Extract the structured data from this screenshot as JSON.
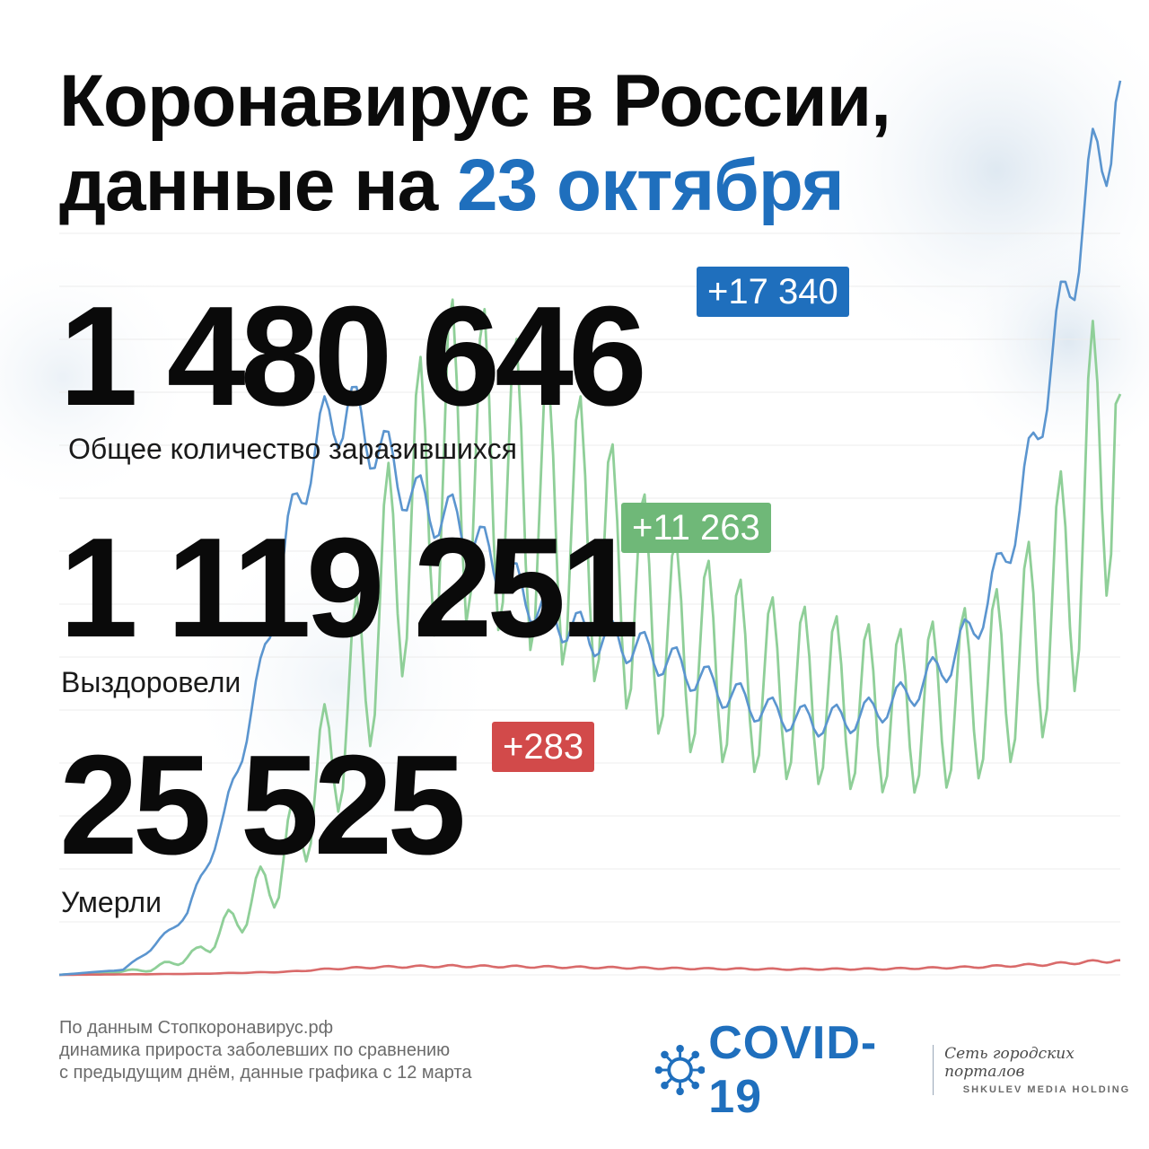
{
  "title": {
    "line1": "Коронавирус в России,",
    "line2_prefix": "данные на ",
    "date": "23 октября"
  },
  "stats": {
    "infected": {
      "value": "1 480 646",
      "delta": "+17 340",
      "label": "Общее количество заразившихся"
    },
    "recovered": {
      "value": "1 119 251",
      "delta": "+11 263",
      "label": "Выздоровели"
    },
    "deaths": {
      "value": "25 525",
      "delta": "+283",
      "label": "Умерли"
    }
  },
  "footer": {
    "line1": "По данным Стопкоронавирус.рф",
    "line2": "динамика прироста заболевших по сравнению",
    "line3": "с предыдущим днём, данные графика с 12 марта"
  },
  "logo": {
    "name": "COVID-19",
    "tagline": "Сеть городских порталов",
    "holding": "SHKULEV MEDIA HOLDING"
  },
  "colors": {
    "accent_blue": "#1f6fbd",
    "infected_line": "#5b95cf",
    "recovered_line": "#8fcf98",
    "deaths_line": "#d96a6a",
    "badge_blue": "#1f6fbd",
    "badge_green": "#6fb878",
    "badge_red": "#d24a4a"
  },
  "chart_data": {
    "type": "line",
    "title": "",
    "xlabel": "",
    "ylabel": "",
    "grid": true,
    "legend": "none",
    "ylim": [
      0,
      18000
    ],
    "x_start": "12 марта",
    "x_end": "23 октября",
    "series": [
      {
        "key": "infected",
        "anchors": [
          [
            0,
            0
          ],
          [
            14,
            100
          ],
          [
            20,
            500
          ],
          [
            28,
            1200
          ],
          [
            36,
            3000
          ],
          [
            44,
            5800
          ],
          [
            50,
            8500
          ],
          [
            55,
            10000
          ],
          [
            58,
            10600
          ],
          [
            63,
            11000
          ],
          [
            70,
            10200
          ],
          [
            78,
            9200
          ],
          [
            88,
            8700
          ],
          [
            97,
            7800
          ],
          [
            105,
            7100
          ],
          [
            115,
            6600
          ],
          [
            125,
            6400
          ],
          [
            135,
            6000
          ],
          [
            145,
            5500
          ],
          [
            155,
            5100
          ],
          [
            165,
            4900
          ],
          [
            175,
            5000
          ],
          [
            185,
            5400
          ],
          [
            195,
            6100
          ],
          [
            203,
            7200
          ],
          [
            210,
            9000
          ],
          [
            216,
            11500
          ],
          [
            221,
            13500
          ],
          [
            226,
            15500
          ],
          [
            230,
            16500
          ],
          [
            232,
            17340
          ]
        ]
      },
      {
        "key": "recovered",
        "anchors": [
          [
            0,
            0
          ],
          [
            20,
            100
          ],
          [
            30,
            400
          ],
          [
            40,
            1200
          ],
          [
            48,
            2000
          ],
          [
            55,
            3400
          ],
          [
            62,
            4800
          ],
          [
            70,
            7000
          ],
          [
            76,
            8700
          ],
          [
            85,
            10000
          ],
          [
            95,
            9800
          ],
          [
            105,
            9000
          ],
          [
            115,
            8500
          ],
          [
            125,
            7400
          ],
          [
            135,
            6400
          ],
          [
            145,
            6000
          ],
          [
            155,
            5600
          ],
          [
            165,
            5400
          ],
          [
            175,
            5200
          ],
          [
            185,
            5100
          ],
          [
            195,
            5300
          ],
          [
            205,
            5700
          ],
          [
            215,
            6700
          ],
          [
            222,
            8000
          ],
          [
            228,
            10500
          ],
          [
            232,
            11263
          ]
        ]
      },
      {
        "key": "deaths",
        "anchors": [
          [
            0,
            0
          ],
          [
            30,
            20
          ],
          [
            50,
            60
          ],
          [
            60,
            120
          ],
          [
            70,
            150
          ],
          [
            85,
            170
          ],
          [
            100,
            160
          ],
          [
            120,
            140
          ],
          [
            140,
            120
          ],
          [
            160,
            110
          ],
          [
            180,
            115
          ],
          [
            200,
            150
          ],
          [
            215,
            200
          ],
          [
            225,
            250
          ],
          [
            232,
            283
          ]
        ]
      }
    ]
  }
}
